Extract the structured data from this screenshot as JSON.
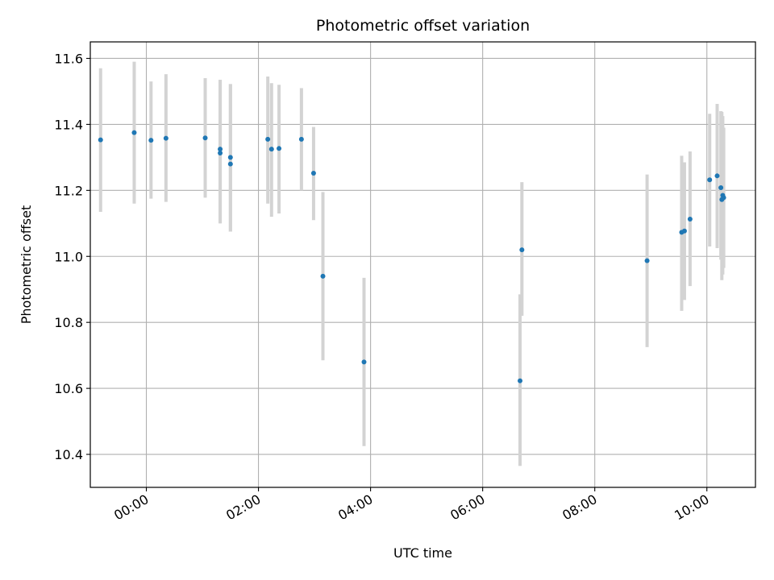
{
  "chart_data": {
    "type": "scatter",
    "title": "Photometric offset variation",
    "xlabel": "UTC time",
    "ylabel": "Photometric offset",
    "grid": true,
    "x_unit": "UTC time (HH:MM)",
    "xlim": [
      "-01:00",
      "10:52"
    ],
    "ylim": [
      10.3,
      11.65
    ],
    "x_ticks": [
      "00:00",
      "02:00",
      "04:00",
      "06:00",
      "08:00",
      "10:00"
    ],
    "y_ticks": [
      10.4,
      10.6,
      10.8,
      11.0,
      11.2,
      11.4,
      11.6
    ],
    "y_tick_labels": [
      "10.4",
      "10.6",
      "10.8",
      "11.0",
      "11.2",
      "11.4",
      "11.6"
    ],
    "x_tick_rotation": 30,
    "point_color": "#1f77b4",
    "errorbar_color": "#d3d3d3",
    "points": [
      {
        "t": "-00:49",
        "y": 11.353,
        "lo": 11.135,
        "hi": 11.57
      },
      {
        "t": "-00:13",
        "y": 11.375,
        "lo": 11.16,
        "hi": 11.59
      },
      {
        "t": "00:05",
        "y": 11.352,
        "lo": 11.175,
        "hi": 11.53
      },
      {
        "t": "00:21",
        "y": 11.358,
        "lo": 11.165,
        "hi": 11.552
      },
      {
        "t": "01:03",
        "y": 11.359,
        "lo": 11.178,
        "hi": 11.54
      },
      {
        "t": "01:19",
        "y": 11.325,
        "lo": 11.1,
        "hi": 11.535
      },
      {
        "t": "01:19",
        "y": 11.313,
        "lo": 11.1,
        "hi": 11.535
      },
      {
        "t": "01:30",
        "y": 11.3,
        "lo": 11.075,
        "hi": 11.522
      },
      {
        "t": "01:30",
        "y": 11.28,
        "lo": 11.075,
        "hi": 11.522
      },
      {
        "t": "02:10",
        "y": 11.355,
        "lo": 11.16,
        "hi": 11.545
      },
      {
        "t": "02:14",
        "y": 11.325,
        "lo": 11.12,
        "hi": 11.525
      },
      {
        "t": "02:22",
        "y": 11.327,
        "lo": 11.13,
        "hi": 11.52
      },
      {
        "t": "02:46",
        "y": 11.355,
        "lo": 11.2,
        "hi": 11.51
      },
      {
        "t": "02:59",
        "y": 11.252,
        "lo": 11.11,
        "hi": 11.392
      },
      {
        "t": "03:09",
        "y": 10.94,
        "lo": 10.685,
        "hi": 11.195
      },
      {
        "t": "03:53",
        "y": 10.68,
        "lo": 10.425,
        "hi": 10.935
      },
      {
        "t": "06:40",
        "y": 10.623,
        "lo": 10.365,
        "hi": 10.885
      },
      {
        "t": "06:42",
        "y": 11.02,
        "lo": 10.82,
        "hi": 11.225
      },
      {
        "t": "08:56",
        "y": 10.987,
        "lo": 10.725,
        "hi": 11.248
      },
      {
        "t": "09:33",
        "y": 11.073,
        "lo": 10.835,
        "hi": 11.305
      },
      {
        "t": "09:36",
        "y": 11.077,
        "lo": 10.868,
        "hi": 11.285
      },
      {
        "t": "09:42",
        "y": 11.113,
        "lo": 10.91,
        "hi": 11.318
      },
      {
        "t": "10:03",
        "y": 11.232,
        "lo": 11.03,
        "hi": 11.432
      },
      {
        "t": "10:11",
        "y": 11.244,
        "lo": 11.025,
        "hi": 11.462
      },
      {
        "t": "10:15",
        "y": 11.208,
        "lo": 10.99,
        "hi": 11.44
      },
      {
        "t": "10:16",
        "y": 11.172,
        "lo": 10.928,
        "hi": 11.438
      },
      {
        "t": "10:17",
        "y": 11.185,
        "lo": 10.945,
        "hi": 11.425
      },
      {
        "t": "10:18",
        "y": 11.178,
        "lo": 10.965,
        "hi": 11.39
      }
    ]
  }
}
